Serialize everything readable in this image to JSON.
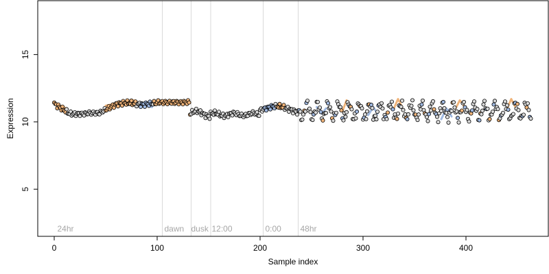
{
  "chart_data": {
    "type": "scatter",
    "xlabel": "Sample index",
    "ylabel": "Expression",
    "xlim": [
      -16,
      480
    ],
    "ylim": [
      1.5,
      19.0
    ],
    "x_ticks": [
      0,
      100,
      200,
      300,
      400
    ],
    "y_ticks": [
      5,
      10,
      15
    ],
    "grid": false,
    "legend": "none",
    "colors": {
      "point_fill_default": "#d9d9d9",
      "point_fill_orange": "#f0b47a",
      "point_fill_blue": "#9fb8e0",
      "point_edge": "#000000",
      "line_orange": "#f0b47a",
      "line_blue": "#9fb8e0",
      "vline": "#d9d9d9",
      "annotation": "#a6a6a6"
    },
    "vlines": [
      105,
      133,
      152,
      203,
      237
    ],
    "annotations": [
      {
        "x": 3,
        "text": "24hr"
      },
      {
        "x": 107,
        "text": "dawn"
      },
      {
        "x": 133,
        "text": "dusk"
      },
      {
        "x": 153,
        "text": "12:00"
      },
      {
        "x": 205,
        "text": "0:00"
      },
      {
        "x": 239,
        "text": "48hr"
      }
    ],
    "line_segments": [
      {
        "color": "orange",
        "x": [
          0,
          6,
          12
        ],
        "y": [
          11.4,
          11.2,
          11.0
        ]
      },
      {
        "color": "orange",
        "x": [
          50,
          56,
          62,
          70,
          78
        ],
        "y": [
          11.2,
          11.3,
          11.4,
          11.5,
          11.6
        ]
      },
      {
        "color": "blue",
        "x": [
          84,
          90,
          95
        ],
        "y": [
          11.4,
          11.2,
          11.1
        ]
      },
      {
        "color": "orange",
        "x": [
          97,
          104,
          110,
          118,
          126,
          132
        ],
        "y": [
          11.3,
          11.4,
          11.5,
          11.6,
          11.5,
          11.4
        ]
      },
      {
        "color": "blue",
        "x": [
          204,
          210,
          214
        ],
        "y": [
          11.0,
          10.9,
          11.1
        ]
      },
      {
        "color": "orange",
        "x": [
          217,
          223
        ],
        "y": [
          11.3,
          11.2
        ]
      },
      {
        "color": "blue",
        "x": [
          255,
          260,
          264
        ],
        "y": [
          11.1,
          10.6,
          11.0
        ]
      },
      {
        "color": "orange",
        "x": [
          280,
          284,
          288
        ],
        "y": [
          10.8,
          11.6,
          10.9
        ]
      },
      {
        "color": "blue",
        "x": [
          305,
          310,
          314
        ],
        "y": [
          10.5,
          11.1,
          10.6
        ]
      },
      {
        "color": "orange",
        "x": [
          330,
          334,
          338
        ],
        "y": [
          11.0,
          11.7,
          11.1
        ]
      },
      {
        "color": "blue",
        "x": [
          376,
          381,
          386
        ],
        "y": [
          10.2,
          11.0,
          10.4
        ]
      },
      {
        "color": "orange",
        "x": [
          390,
          394,
          398
        ],
        "y": [
          11.0,
          11.6,
          11.2
        ]
      },
      {
        "color": "orange",
        "x": [
          440,
          444,
          448
        ],
        "y": [
          11.0,
          11.7,
          11.1
        ]
      }
    ]
  }
}
